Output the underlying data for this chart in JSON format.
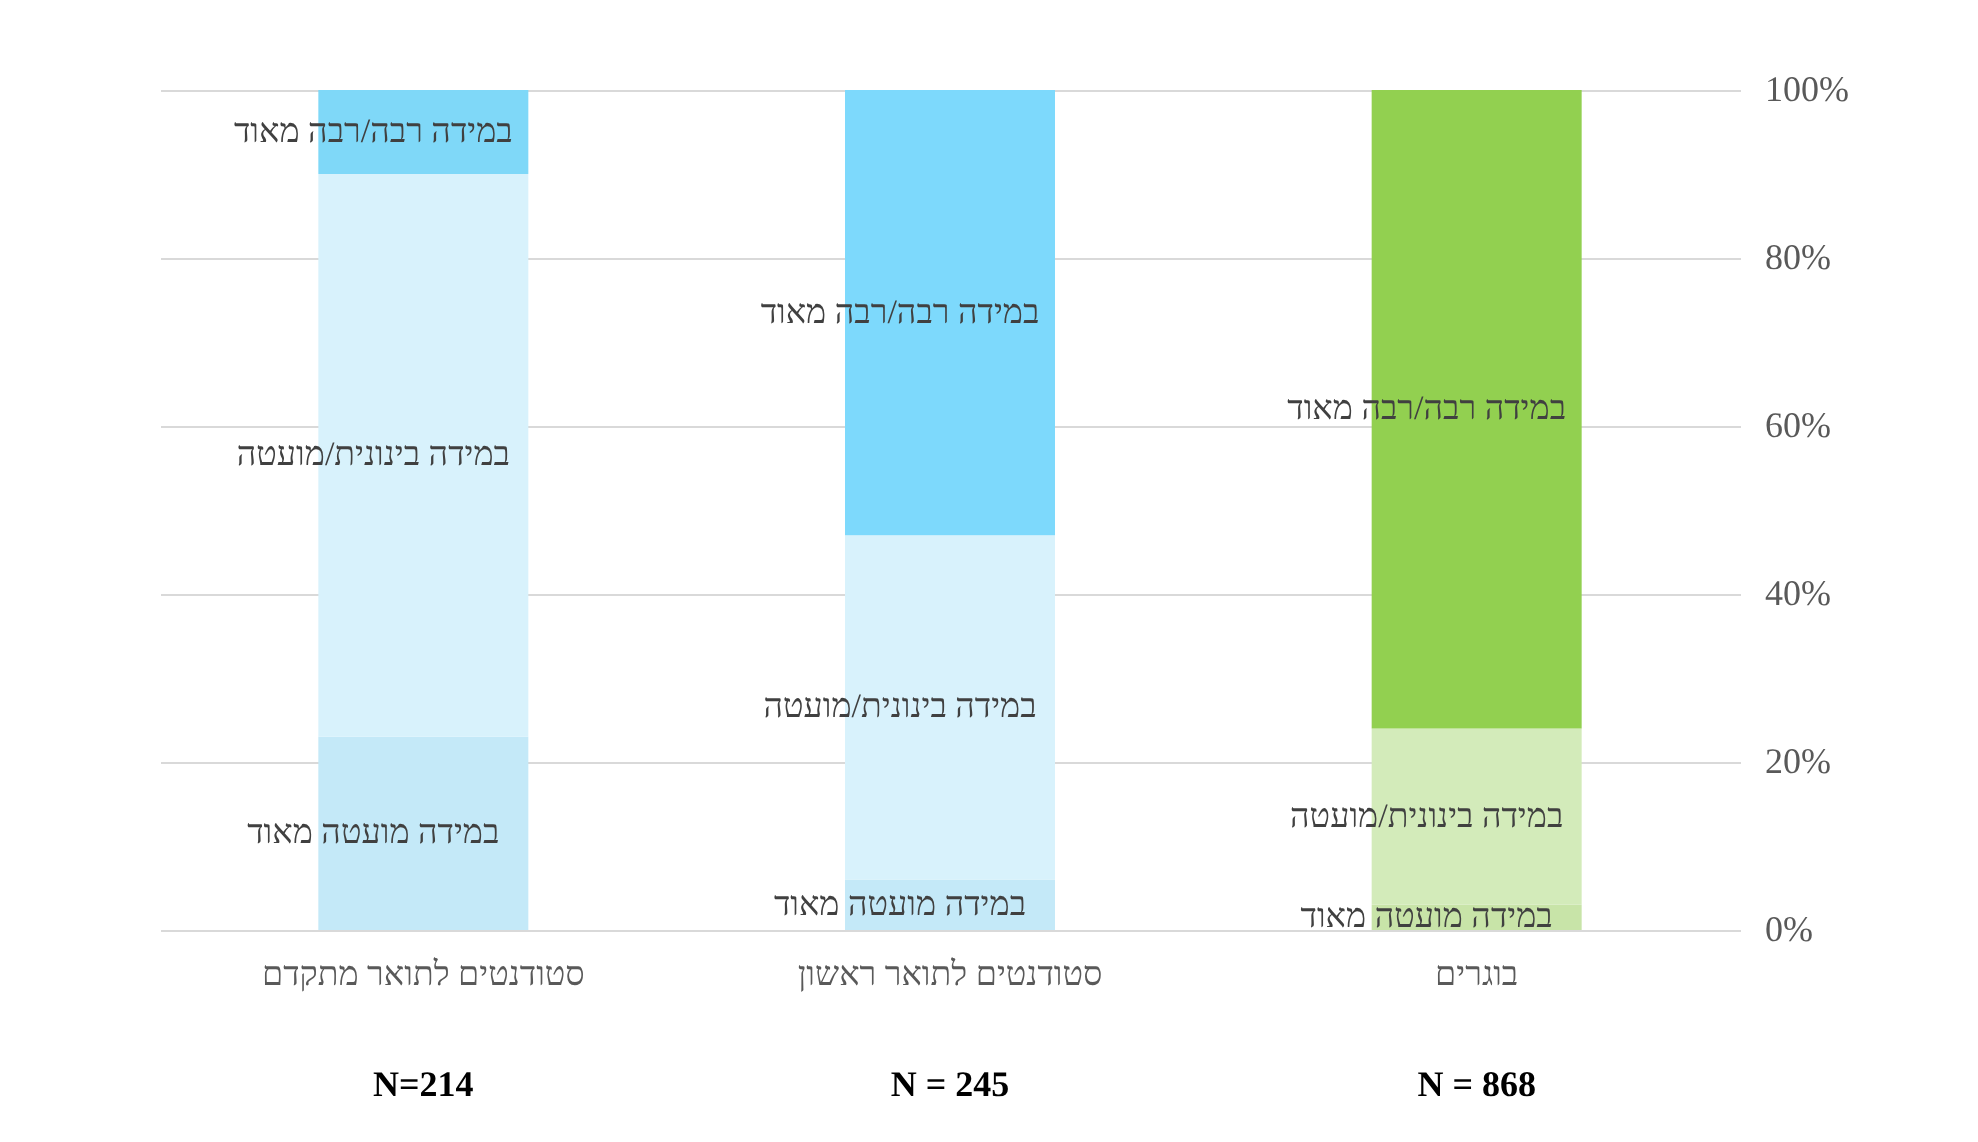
{
  "chart_data": {
    "type": "bar",
    "stacked": true,
    "categories": [
      "סטודנטים לתואר מתקדם",
      "סטודנטים לתואר ראשון",
      "בוגרים"
    ],
    "series": [
      {
        "name": "במידה מועטה מאוד",
        "colors": [
          "#c4e9f8",
          "#c4e9f8",
          "#c8e4a8"
        ],
        "values": [
          23,
          6,
          3
        ]
      },
      {
        "name": "במידה בינונית/מועטה",
        "colors": [
          "#d8f2fc",
          "#d8f2fc",
          "#d3ebba"
        ],
        "values": [
          67,
          41,
          21
        ]
      },
      {
        "name": "במידה רבה/רבה מאוד",
        "colors": [
          "#7fd8f8",
          "#7dd9fc",
          "#92d050"
        ],
        "values": [
          10,
          53,
          76
        ]
      }
    ],
    "ylim": [
      0,
      100
    ],
    "yticks": [
      {
        "value": 0,
        "label": "0%"
      },
      {
        "value": 20,
        "label": "20%"
      },
      {
        "value": 40,
        "label": "40%"
      },
      {
        "value": 60,
        "label": "60%"
      },
      {
        "value": 80,
        "label": "80%"
      },
      {
        "value": 100,
        "label": "100%"
      }
    ],
    "grid": "y",
    "legend": false,
    "annotations": [
      "N=214",
      "N = 245",
      "N = 868"
    ]
  }
}
